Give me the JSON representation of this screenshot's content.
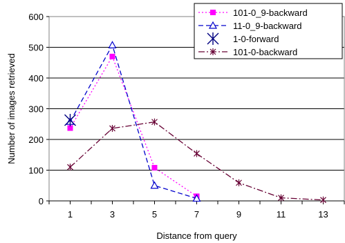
{
  "chart_data": {
    "type": "line",
    "title": "",
    "xlabel": "Distance from query",
    "ylabel": "Number of images retrieved",
    "x_ticks": [
      "1",
      "3",
      "5",
      "7",
      "9",
      "11",
      "13"
    ],
    "y_ticks": [
      "0",
      "100",
      "200",
      "300",
      "400",
      "500",
      "600"
    ],
    "xlim": [
      0,
      14
    ],
    "ylim": [
      0,
      600
    ],
    "grid": "horizontal",
    "legend_position": "top-right",
    "series": [
      {
        "name": "101-0_9-backward",
        "color": "#ff00ff",
        "line": "dotted",
        "marker": "square",
        "points": [
          [
            1,
            237
          ],
          [
            3,
            470
          ],
          [
            5,
            108
          ],
          [
            7,
            15
          ]
        ]
      },
      {
        "name": "11-0_9-backward",
        "color": "#0000cc",
        "line": "dashed",
        "marker": "triangle",
        "points": [
          [
            1,
            258
          ],
          [
            3,
            507
          ],
          [
            5,
            50
          ],
          [
            7,
            8
          ]
        ]
      },
      {
        "name": "1-0-forward",
        "color": "#000080",
        "line": "none",
        "marker": "x-star",
        "points": [
          [
            1,
            263
          ]
        ]
      },
      {
        "name": "101-0-backward",
        "color": "#660033",
        "line": "dashdot",
        "marker": "asterisk",
        "points": [
          [
            1,
            110
          ],
          [
            3,
            236
          ],
          [
            5,
            257
          ],
          [
            7,
            154
          ],
          [
            9,
            59
          ],
          [
            11,
            10
          ],
          [
            13,
            3
          ]
        ]
      }
    ]
  }
}
